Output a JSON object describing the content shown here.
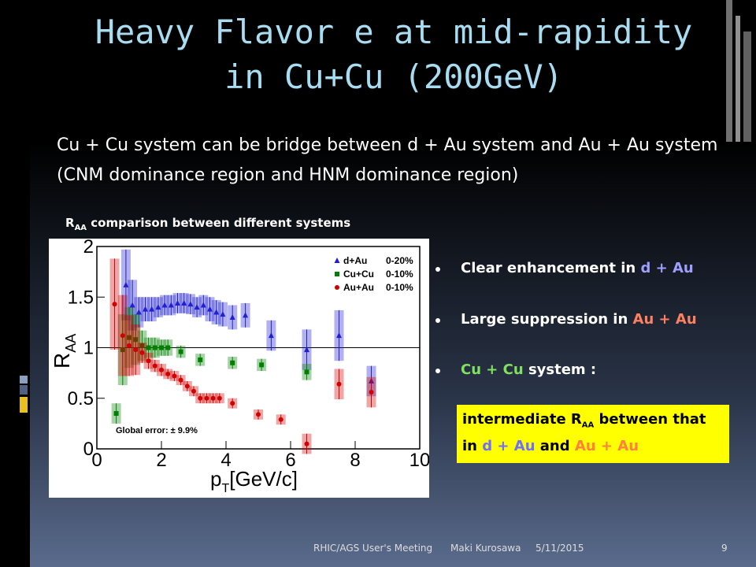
{
  "slide": {
    "title": [
      "Heavy Flavor e at mid-rapidity",
      "in Cu+Cu (200GeV)"
    ],
    "body": "Cu + Cu system can be bridge between d + Au system and Au + Au system (CNM dominance region and HNM dominance region)",
    "caption": [
      "R",
      "AA",
      " comparison between different systems"
    ],
    "bullets": [
      {
        "runs": [
          "Clear enhancement  in ",
          "d + Au"
        ],
        "colors": [
          "#ffffff",
          "#9f9fff"
        ]
      },
      {
        "runs": [
          "Large suppression in ",
          "Au + Au"
        ],
        "colors": [
          "#ffffff",
          "#ff8060"
        ]
      },
      {
        "runs": [
          "Cu + Cu",
          " system :"
        ],
        "colors": [
          "#80e060",
          "#ffffff"
        ]
      }
    ],
    "note": {
      "runs": [
        "intermediate R",
        "AA",
        " between that in ",
        "d + Au",
        " and ",
        "Au + Au"
      ],
      "colors": [
        "#000000",
        "#000000",
        "#000000",
        "#6f6fff",
        "#000000",
        "#ff8040"
      ]
    },
    "footer": {
      "event": "RHIC/AGS User's Meeting",
      "author": "Maki Kurosawa",
      "date": "5/11/2015",
      "page": "9"
    }
  },
  "chart_data": {
    "type": "scatter",
    "xlabel": [
      "p",
      "T",
      "[GeV/c]"
    ],
    "ylabel": [
      "R",
      "AA"
    ],
    "xlim": [
      0,
      10
    ],
    "ylim": [
      0,
      2
    ],
    "xticks": [
      0,
      2,
      4,
      6,
      8,
      10
    ],
    "yticks": [
      0,
      0.5,
      1,
      1.5,
      2
    ],
    "reference_line": 1,
    "annotation": "Global error: ± 9.9%",
    "series": [
      {
        "name": "d+Au",
        "centrality": "0-20%",
        "color": "#2020d0",
        "marker": "triangle",
        "x": [
          0.9,
          1.1,
          1.3,
          1.5,
          1.7,
          1.9,
          2.1,
          2.3,
          2.5,
          2.7,
          2.9,
          3.1,
          3.3,
          3.5,
          3.7,
          3.9,
          4.2,
          4.6,
          5.4,
          6.5,
          7.5,
          8.5
        ],
        "values": [
          1.62,
          1.42,
          1.35,
          1.38,
          1.38,
          1.4,
          1.42,
          1.42,
          1.44,
          1.44,
          1.43,
          1.4,
          1.42,
          1.38,
          1.35,
          1.33,
          1.3,
          1.32,
          1.12,
          0.98,
          1.12,
          0.67
        ],
        "errors": [
          0.35,
          0.25,
          0.15,
          0.12,
          0.12,
          0.1,
          0.1,
          0.1,
          0.1,
          0.1,
          0.1,
          0.1,
          0.1,
          0.12,
          0.12,
          0.12,
          0.12,
          0.12,
          0.15,
          0.2,
          0.25,
          0.15
        ]
      },
      {
        "name": "Cu+Cu",
        "centrality": "0-10%",
        "color": "#008000",
        "marker": "square",
        "x": [
          0.6,
          0.8,
          1.0,
          1.2,
          1.4,
          1.6,
          1.8,
          2.0,
          2.2,
          2.6,
          3.2,
          4.2,
          5.1,
          6.5
        ],
        "values": [
          0.35,
          0.98,
          1.1,
          1.08,
          1.02,
          1.0,
          1.0,
          1.0,
          1.0,
          0.96,
          0.88,
          0.85,
          0.83,
          0.76
        ],
        "errors": [
          0.1,
          0.35,
          0.3,
          0.25,
          0.15,
          0.1,
          0.1,
          0.08,
          0.08,
          0.06,
          0.06,
          0.06,
          0.06,
          0.08
        ]
      },
      {
        "name": "Au+Au",
        "centrality": "0-10%",
        "color": "#d00000",
        "marker": "circle",
        "x": [
          0.55,
          0.8,
          1.0,
          1.2,
          1.4,
          1.6,
          1.8,
          2.0,
          2.2,
          2.4,
          2.6,
          2.8,
          3.0,
          3.2,
          3.4,
          3.6,
          3.8,
          4.2,
          5.0,
          5.7,
          6.5,
          7.5,
          8.5
        ],
        "values": [
          1.43,
          1.12,
          1.02,
          0.98,
          0.95,
          0.87,
          0.82,
          0.78,
          0.74,
          0.72,
          0.68,
          0.62,
          0.57,
          0.5,
          0.5,
          0.5,
          0.5,
          0.45,
          0.34,
          0.29,
          0.05,
          0.64,
          0.56
        ],
        "errors": [
          0.45,
          0.4,
          0.3,
          0.25,
          0.1,
          0.08,
          0.06,
          0.06,
          0.05,
          0.05,
          0.05,
          0.05,
          0.05,
          0.05,
          0.05,
          0.05,
          0.05,
          0.05,
          0.05,
          0.05,
          0.1,
          0.15,
          0.15
        ]
      }
    ]
  }
}
